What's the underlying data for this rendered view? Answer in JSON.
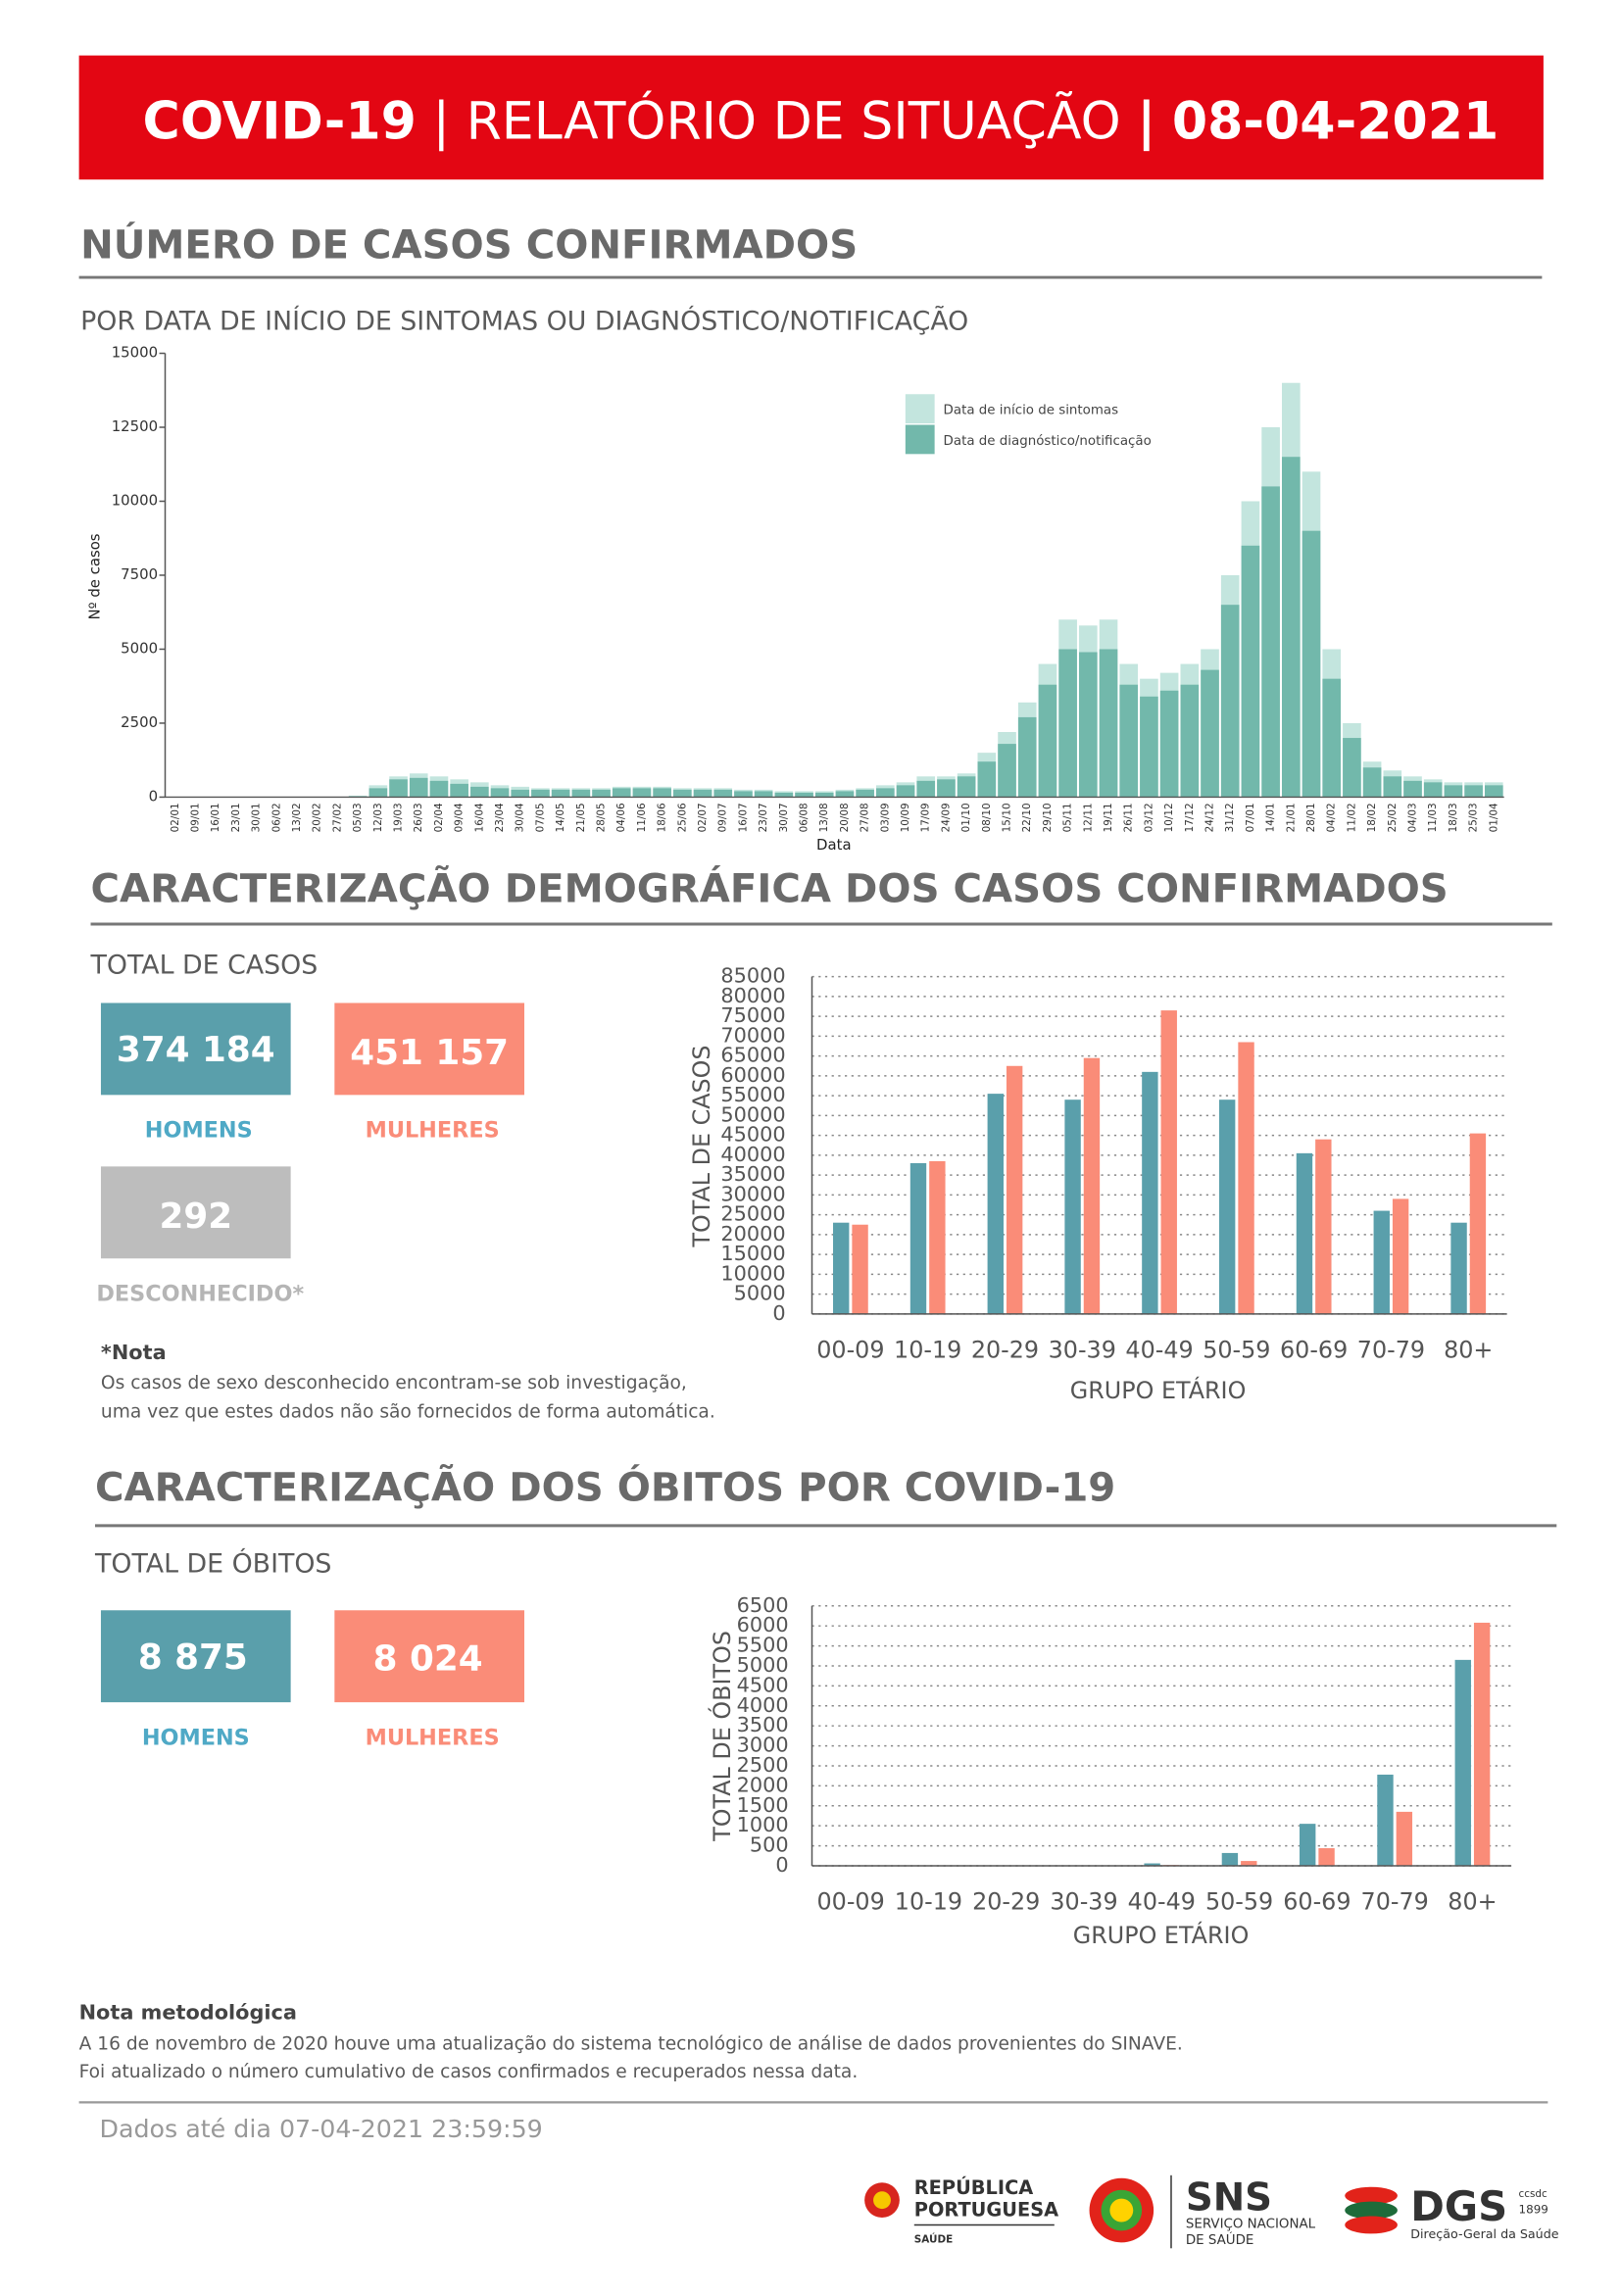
{
  "header": {
    "title": "COVID-19",
    "separator": "|",
    "subtitle": "RELATÓRIO DE SITUAÇÃO",
    "date": "08-04-2021"
  },
  "cases_section": {
    "heading": "NÚMERO DE CASOS CONFIRMADOS"
  },
  "demographics": {
    "heading": "CARACTERIZAÇÃO DEMOGRÁFICA DOS CASOS CONFIRMADOS",
    "total_label": "TOTAL DE CASOS",
    "boxes": [
      {
        "value": "374 184",
        "label": "HOMENS"
      },
      {
        "value": "451 157",
        "label": "MULHERES"
      },
      {
        "value": "292",
        "label": "DESCONHECIDO*"
      }
    ],
    "note": {
      "title": "*Nota",
      "lines": [
        "Os casos de sexo desconhecido encontram-se sob investigação,",
        "uma vez que estes dados não são fornecidos de forma automática."
      ]
    }
  },
  "deaths": {
    "heading": "CARACTERIZAÇÃO DOS ÓBITOS POR COVID-19",
    "total_label": "TOTAL DE ÓBITOS",
    "boxes": [
      {
        "value": "8 875",
        "label": "HOMENS"
      },
      {
        "value": "8 024",
        "label": "MULHERES"
      }
    ]
  },
  "method_note": {
    "title": "Nota metodológica",
    "lines": [
      "A 16 de novembro de 2020 houve uma atualização do sistema tecnológico de análise de dados provenientes do SINAVE.",
      "Foi atualizado o número cumulativo de casos confirmados e recuperados nessa data."
    ]
  },
  "footer": {
    "text": "Dados até dia 07-04-2021 23:59:59"
  },
  "logos": {
    "republica": [
      "REPÚBLICA",
      "PORTUGUESA"
    ],
    "republica_sub": "SAÚDE",
    "sns": "SNS",
    "sns_sub": [
      "SERVIÇO NACIONAL",
      "DE SAÚDE"
    ],
    "dgs": "DGS",
    "dgs_mark": [
      "ccsdc",
      "1899"
    ],
    "dgs_sub": "Direção-Geral da Saúde"
  },
  "chart_data": [
    {
      "type": "bar",
      "overlap": true,
      "grid": false,
      "title": "POR DATA DE INÍCIO DE SINTOMAS OU DIAGNÓSTICO/NOTIFICAÇÃO",
      "x_label": "Data",
      "y_label": "Nº de casos",
      "categories": [
        "02/01",
        "09/01",
        "16/01",
        "23/01",
        "30/01",
        "06/02",
        "13/02",
        "20/02",
        "27/02",
        "05/03",
        "12/03",
        "19/03",
        "26/03",
        "02/04",
        "09/04",
        "16/04",
        "23/04",
        "30/04",
        "07/05",
        "14/05",
        "21/05",
        "28/05",
        "04/06",
        "11/06",
        "18/06",
        "25/06",
        "02/07",
        "09/07",
        "16/07",
        "23/07",
        "30/07",
        "06/08",
        "13/08",
        "20/08",
        "27/08",
        "03/09",
        "10/09",
        "17/09",
        "24/09",
        "01/10",
        "08/10",
        "15/10",
        "22/10",
        "29/10",
        "05/11",
        "12/11",
        "19/11",
        "26/11",
        "03/12",
        "10/12",
        "17/12",
        "24/12",
        "31/12",
        "07/01",
        "14/01",
        "21/01",
        "28/01",
        "04/02",
        "11/02",
        "18/02",
        "25/02",
        "04/03",
        "11/03",
        "18/03",
        "25/03",
        "01/04"
      ],
      "series": [
        {
          "name": "Data de início de sintomas",
          "color": "#c3e5de",
          "values": [
            0,
            0,
            0,
            0,
            0,
            0,
            0,
            0,
            0,
            50,
            400,
            700,
            800,
            700,
            600,
            500,
            400,
            350,
            300,
            300,
            300,
            300,
            350,
            350,
            350,
            300,
            300,
            300,
            250,
            250,
            200,
            200,
            200,
            250,
            300,
            400,
            500,
            700,
            700,
            800,
            1500,
            2200,
            3200,
            4500,
            6000,
            5800,
            6000,
            4500,
            4000,
            4200,
            4500,
            5000,
            7500,
            10000,
            12500,
            14000,
            11000,
            5000,
            2500,
            1200,
            900,
            700,
            600,
            500,
            500,
            500
          ]
        },
        {
          "name": "Data de diagnóstico/notificação",
          "color": "#72b8ab",
          "values": [
            0,
            0,
            0,
            0,
            0,
            0,
            0,
            0,
            0,
            30,
            300,
            600,
            650,
            550,
            450,
            350,
            300,
            250,
            250,
            250,
            250,
            250,
            300,
            300,
            300,
            250,
            250,
            250,
            200,
            200,
            150,
            150,
            150,
            200,
            250,
            300,
            400,
            550,
            600,
            700,
            1200,
            1800,
            2700,
            3800,
            5000,
            4900,
            5000,
            3800,
            3400,
            3600,
            3800,
            4300,
            6500,
            8500,
            10500,
            11500,
            9000,
            4000,
            2000,
            1000,
            700,
            550,
            500,
            400,
            400,
            400
          ]
        }
      ],
      "ylim": [
        0,
        15000
      ],
      "yticks": [
        0,
        2500,
        5000,
        7500,
        10000,
        12500,
        15000
      ]
    },
    {
      "type": "bar",
      "overlap": false,
      "grid": true,
      "x_label": "GRUPO ETÁRIO",
      "y_label": "TOTAL DE CASOS",
      "categories": [
        "00-09",
        "10-19",
        "20-29",
        "30-39",
        "40-49",
        "50-59",
        "60-69",
        "70-79",
        "80+"
      ],
      "series": [
        {
          "color": "#5a9fab",
          "values": [
            23000,
            38000,
            55500,
            54000,
            61000,
            54000,
            40500,
            26000,
            23000
          ]
        },
        {
          "color": "#fa8c78",
          "values": [
            22500,
            38500,
            62500,
            64500,
            76500,
            68500,
            44000,
            29000,
            45500
          ]
        }
      ],
      "ylim": [
        0,
        85000
      ],
      "yticks": [
        0,
        5000,
        10000,
        15000,
        20000,
        25000,
        30000,
        35000,
        40000,
        45000,
        50000,
        55000,
        60000,
        65000,
        70000,
        75000,
        80000,
        85000
      ]
    },
    {
      "type": "bar",
      "overlap": false,
      "grid": true,
      "x_label": "GRUPO ETÁRIO",
      "y_label": "TOTAL DE ÓBITOS",
      "categories": [
        "00-09",
        "10-19",
        "20-29",
        "30-39",
        "40-49",
        "50-59",
        "60-69",
        "70-79",
        "80+"
      ],
      "series": [
        {
          "color": "#5a9fab",
          "values": [
            0,
            0,
            0,
            5,
            60,
            320,
            1050,
            2280,
            5150
          ]
        },
        {
          "color": "#fa8c78",
          "values": [
            0,
            0,
            0,
            2,
            20,
            120,
            440,
            1350,
            6080
          ]
        }
      ],
      "ylim": [
        0,
        6500
      ],
      "yticks": [
        0,
        500,
        1000,
        1500,
        2000,
        2500,
        3000,
        3500,
        4000,
        4500,
        5000,
        5500,
        6000,
        6500
      ]
    }
  ]
}
